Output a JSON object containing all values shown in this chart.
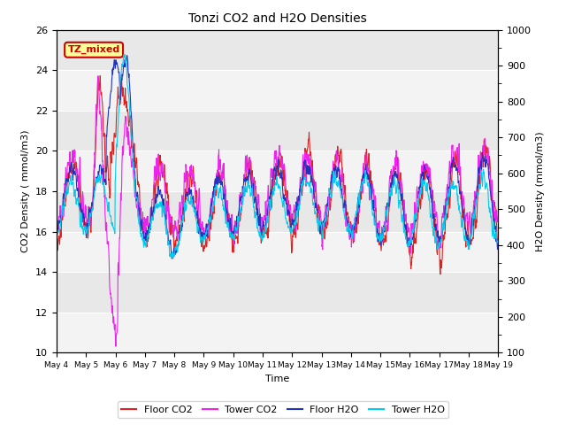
{
  "title": "Tonzi CO2 and H2O Densities",
  "xlabel": "Time",
  "ylabel_left": "CO2 Density ( mmol/m3)",
  "ylabel_right": "H2O Density (mmol/m3)",
  "annotation_text": "TZ_mixed",
  "annotation_color": "#cc0000",
  "annotation_bg": "#ffff99",
  "ylim_left": [
    10,
    26
  ],
  "ylim_right": [
    100,
    1000
  ],
  "yticks_left": [
    10,
    12,
    14,
    16,
    18,
    20,
    22,
    24,
    26
  ],
  "yticks_right": [
    100,
    200,
    300,
    400,
    500,
    600,
    700,
    800,
    900,
    1000
  ],
  "colors": {
    "floor_co2": "#dd2222",
    "tower_co2": "#ee22ee",
    "floor_h2o": "#2233bb",
    "tower_h2o": "#00ccee"
  },
  "legend_labels": [
    "Floor CO2",
    "Tower CO2",
    "Floor H2O",
    "Tower H2O"
  ],
  "bg_color": "#e8e8e8",
  "n_points": 1440,
  "seed": 42
}
